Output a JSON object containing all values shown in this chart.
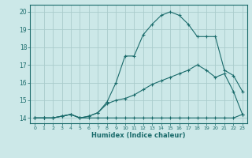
{
  "xlabel": "Humidex (Indice chaleur)",
  "background_color": "#cce8e8",
  "grid_color": "#aacccc",
  "line_color": "#1a6b6b",
  "xlim": [
    -0.5,
    23.5
  ],
  "ylim": [
    13.7,
    20.4
  ],
  "xticks": [
    0,
    1,
    2,
    3,
    4,
    5,
    6,
    7,
    8,
    9,
    10,
    11,
    12,
    13,
    14,
    15,
    16,
    17,
    18,
    19,
    20,
    21,
    22,
    23
  ],
  "yticks": [
    14,
    15,
    16,
    17,
    18,
    19,
    20
  ],
  "line1_x": [
    0,
    1,
    2,
    3,
    4,
    5,
    6,
    7,
    8,
    9,
    10,
    11,
    12,
    13,
    14,
    15,
    16,
    17,
    18,
    19,
    20,
    21,
    22,
    23
  ],
  "line1_y": [
    14.0,
    14.0,
    14.0,
    14.1,
    14.2,
    14.0,
    14.0,
    14.0,
    14.0,
    14.0,
    14.0,
    14.0,
    14.0,
    14.0,
    14.0,
    14.0,
    14.0,
    14.0,
    14.0,
    14.0,
    14.0,
    14.0,
    14.0,
    14.2
  ],
  "line2_x": [
    0,
    1,
    2,
    3,
    4,
    5,
    6,
    7,
    8,
    9,
    10,
    11,
    12,
    13,
    14,
    15,
    16,
    17,
    18,
    19,
    20,
    21,
    22,
    23
  ],
  "line2_y": [
    14.0,
    14.0,
    14.0,
    14.1,
    14.2,
    14.0,
    14.1,
    14.3,
    14.8,
    15.0,
    15.1,
    15.3,
    15.6,
    15.9,
    16.1,
    16.3,
    16.5,
    16.7,
    17.0,
    16.7,
    16.3,
    16.5,
    15.5,
    14.2
  ],
  "line3_x": [
    0,
    1,
    2,
    3,
    4,
    5,
    6,
    7,
    8,
    9,
    10,
    11,
    12,
    13,
    14,
    15,
    16,
    17,
    18,
    19,
    20,
    21,
    22,
    23
  ],
  "line3_y": [
    14.0,
    14.0,
    14.0,
    14.1,
    14.2,
    14.0,
    14.1,
    14.3,
    14.9,
    16.0,
    17.5,
    17.5,
    18.7,
    19.3,
    19.8,
    20.0,
    19.8,
    19.3,
    18.6,
    18.6,
    18.6,
    16.7,
    16.4,
    15.5
  ]
}
